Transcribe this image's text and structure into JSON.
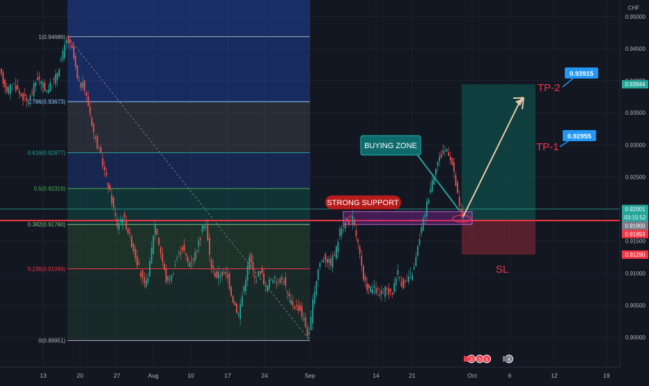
{
  "currency": "CHF",
  "chart_data": {
    "type": "candlestick",
    "ylim": [
      0.8965,
      0.9545
    ],
    "y_ticks": [
      "0.95000",
      "0.94500",
      "0.94000",
      "0.93500",
      "0.93000",
      "0.92500",
      "0.92000",
      "0.91500",
      "0.91000",
      "0.90500",
      "0.90000"
    ],
    "x_ticks": [
      "13",
      "20",
      "27",
      "Aug",
      "10",
      "17",
      "24",
      "Sep",
      "14",
      "21",
      "Oct",
      "6",
      "12",
      "19"
    ],
    "fibonacci": {
      "levels": [
        {
          "label": "1(0.94686)",
          "value": 0.94686
        },
        {
          "label": "0.786(0.93673)",
          "value": 0.93673
        },
        {
          "label": "0.618(0.92877)",
          "value": 0.92877
        },
        {
          "label": "0.5(0.92319)",
          "value": 0.92319
        },
        {
          "label": "0.382(0.91760)",
          "value": 0.9176
        },
        {
          "label": "0.236(0.91069)",
          "value": 0.91069
        },
        {
          "label": "0(0.89951)",
          "value": 0.89951
        }
      ]
    },
    "price_tags": [
      {
        "text": "0.93944",
        "value": 0.93944,
        "color": "#26a69a"
      },
      {
        "text": "0.92001",
        "value": 0.92001,
        "color": "#26a69a"
      },
      {
        "text": "03:15:52",
        "value": 0.91963,
        "color": "#26a69a"
      },
      {
        "text": "0.91900",
        "value": 0.919,
        "color": "#787b86"
      },
      {
        "text": "0.91893",
        "value": 0.91893,
        "color": "#f23645"
      },
      {
        "text": "0.91290",
        "value": 0.9129,
        "color": "#f23645"
      }
    ],
    "trade": {
      "entry": 0.9182,
      "target": 0.93944,
      "stop": 0.9129
    },
    "support_zone": [
      0.9176,
      0.9196
    ],
    "annotations": {
      "buying_zone": "BUYING ZONE",
      "strong_support": "STRONG SUPPORT",
      "tp1_label": "TP-1",
      "tp1_value": "0.92955",
      "tp2_label": "TP-2",
      "tp2_value": "0.93915",
      "sl_label": "SL"
    },
    "events": [
      "3",
      "5",
      "6",
      "4"
    ]
  }
}
